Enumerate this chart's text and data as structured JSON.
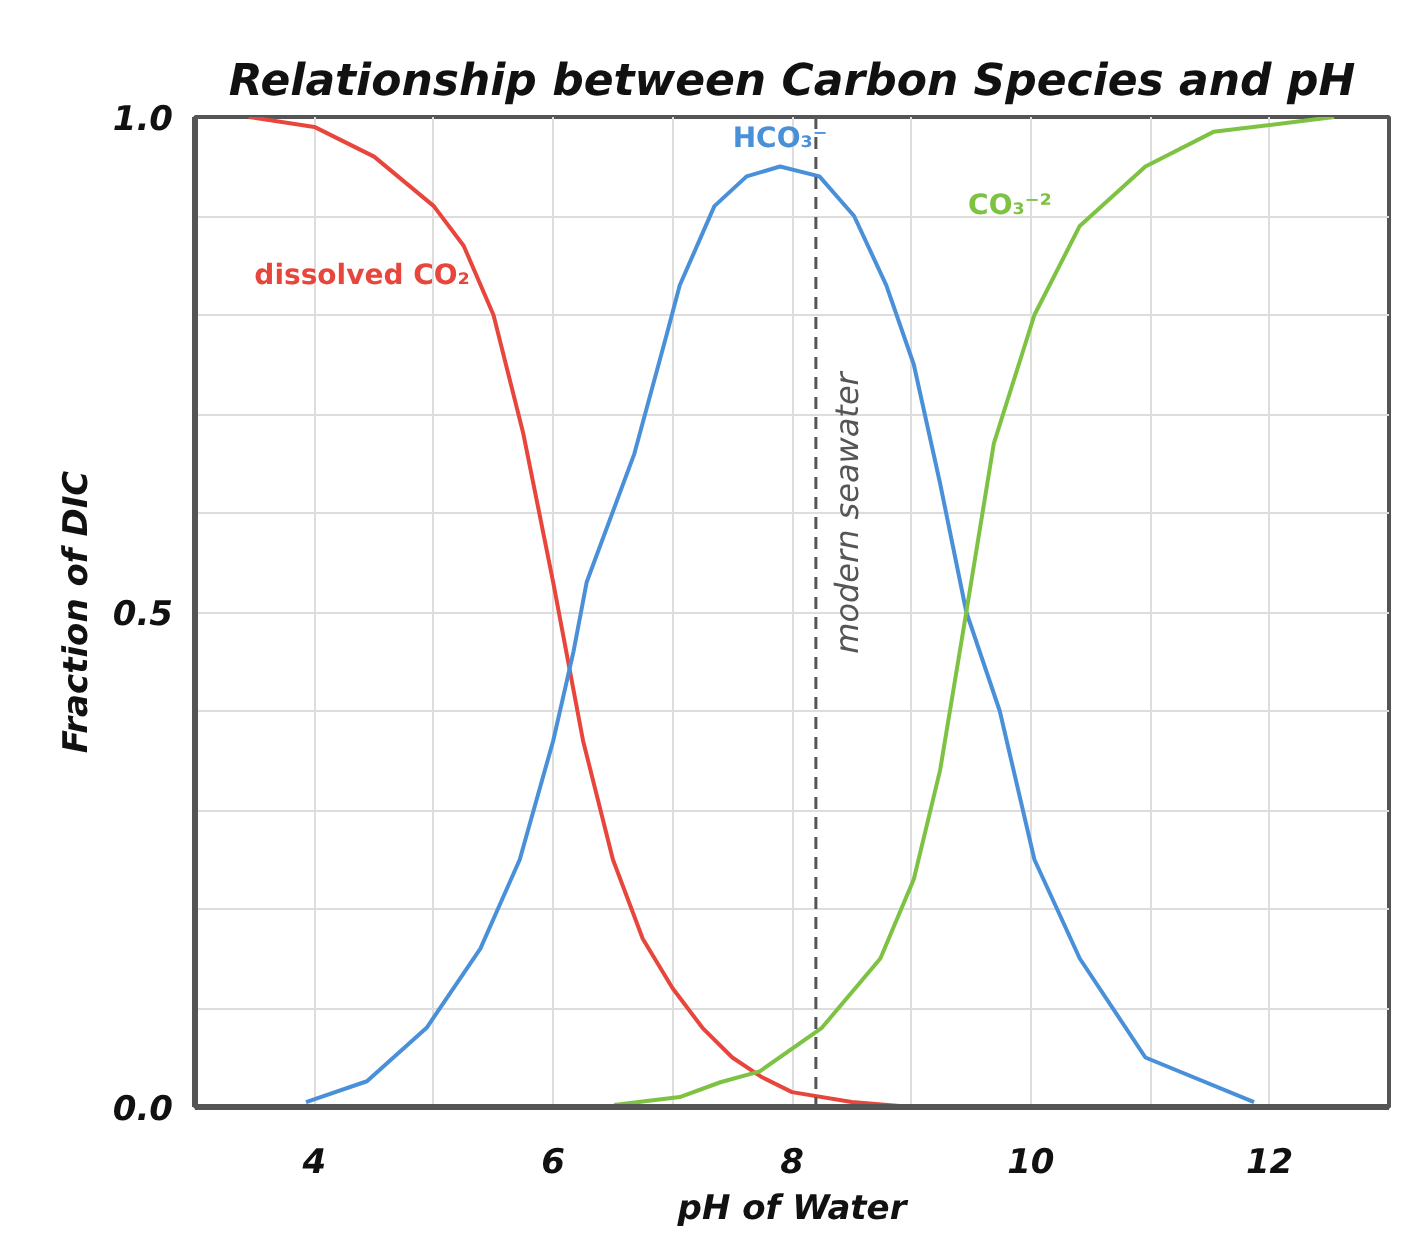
{
  "chart_data": {
    "type": "line",
    "title": "Relationship between Carbon Species and pH",
    "xlabel": "pH of Water",
    "ylabel": "Fraction of DIC",
    "xlim": [
      3,
      13
    ],
    "ylim": [
      0,
      1
    ],
    "xticks": [
      4,
      {
        "value": 5,
        "label": null
      },
      6,
      {
        "value": 7,
        "label": null
      },
      8,
      {
        "value": 9,
        "label": null
      },
      10,
      {
        "value": 11,
        "label": null
      },
      12
    ],
    "yticks": [
      {
        "value": 0,
        "label": "0.0"
      },
      {
        "value": 0.1,
        "label": null
      },
      {
        "value": 0.2,
        "label": null
      },
      {
        "value": 0.3,
        "label": null
      },
      {
        "value": 0.4,
        "label": null
      },
      0.5,
      {
        "value": 0.6,
        "label": null
      },
      {
        "value": 0.7,
        "label": null
      },
      {
        "value": 0.8,
        "label": null
      },
      {
        "value": 0.9,
        "label": null
      },
      {
        "value": 1,
        "label": "1.0"
      }
    ],
    "grid": true,
    "legend": false,
    "marker": "none",
    "line_style": "solid",
    "series": [
      {
        "name": "dissolved CO₂",
        "color": "#e8453c",
        "x": [
          3.45,
          4,
          4.5,
          5,
          5.25,
          5.5,
          5.75,
          6,
          6.25,
          6.5,
          6.75,
          7,
          7.25,
          7.5,
          7.75,
          8,
          8.5,
          9
        ],
        "values": [
          1.0,
          0.99,
          0.96,
          0.91,
          0.87,
          0.8,
          0.68,
          0.53,
          0.37,
          0.25,
          0.17,
          0.12,
          0.08,
          0.05,
          0.03,
          0.015,
          0.005,
          0.0
        ]
      },
      {
        "name": "HCO₃⁻",
        "color": "#4a90d9",
        "x": [
          3.93,
          4.44,
          4.94,
          5.39,
          5.72,
          6.0,
          6.17,
          6.28,
          6.68,
          6.95,
          7.06,
          7.35,
          7.62,
          7.9,
          8.23,
          8.52,
          8.79,
          9.02,
          9.24,
          9.46,
          9.74,
          10.03,
          10.41,
          10.96,
          11.87
        ],
        "values": [
          0.005,
          0.026,
          0.08,
          0.16,
          0.25,
          0.37,
          0.46,
          0.53,
          0.66,
          0.78,
          0.83,
          0.91,
          0.94,
          0.95,
          0.94,
          0.9,
          0.83,
          0.75,
          0.63,
          0.5,
          0.4,
          0.25,
          0.15,
          0.05,
          0.005
        ]
      },
      {
        "name": "CO₃⁻²",
        "color": "#7dc242",
        "x": [
          6.51,
          7.06,
          7.4,
          7.73,
          8.25,
          8.74,
          9.02,
          9.24,
          9.46,
          9.69,
          10.03,
          10.41,
          10.96,
          11.53,
          12.54
        ],
        "values": [
          0.002,
          0.01,
          0.025,
          0.036,
          0.08,
          0.15,
          0.23,
          0.34,
          0.5,
          0.67,
          0.8,
          0.89,
          0.95,
          0.985,
          1.0
        ]
      }
    ],
    "ref_lines": [
      {
        "axis": "x",
        "value": 8.2,
        "label": "modern seawater",
        "color": "#555555",
        "line_style": "dashed"
      }
    ]
  }
}
